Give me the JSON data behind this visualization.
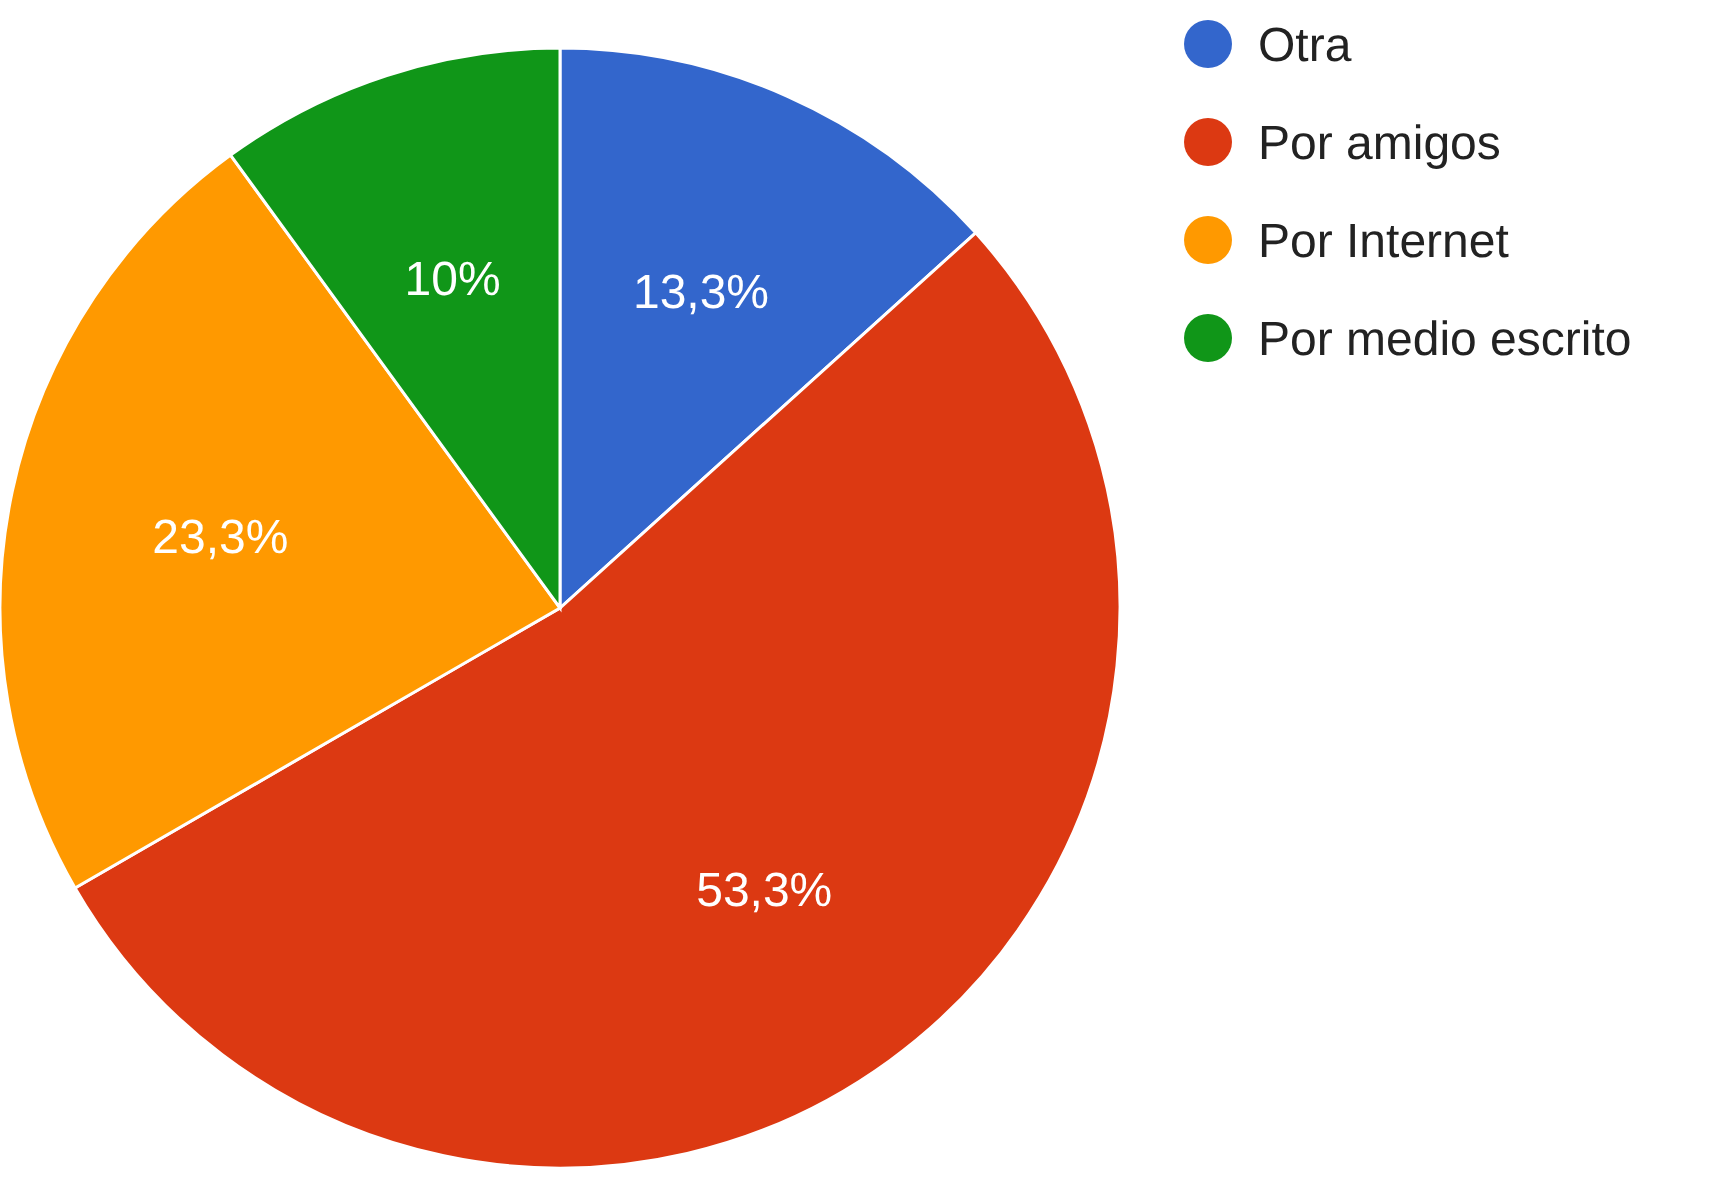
{
  "chart_data": {
    "type": "pie",
    "categories": [
      "Otra",
      "Por amigos",
      "Por Internet",
      "Por medio escrito"
    ],
    "values": [
      13.3,
      53.3,
      23.3,
      10
    ],
    "colors": [
      "#3366cc",
      "#dc3912",
      "#ff9900",
      "#109618"
    ],
    "value_labels": [
      "13,3%",
      "53,3%",
      "23,3%",
      "10%"
    ],
    "legend": "right"
  }
}
